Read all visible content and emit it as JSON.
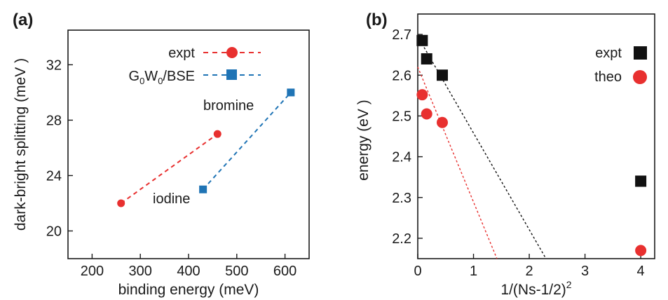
{
  "colors": {
    "red": "#e8302f",
    "blue": "#1f74b5",
    "black": "#111111"
  },
  "chart_data": [
    {
      "type": "scatter",
      "panel": "(a)",
      "xlabel": "binding energy (meV)",
      "ylabel": "dark-bright splitting (meV )",
      "xlim": [
        150,
        650
      ],
      "ylim": [
        18,
        34.5
      ],
      "xticks": [
        "200",
        "300",
        "400",
        "500",
        "600"
      ],
      "yticks": [
        "20",
        "24",
        "28",
        "32"
      ],
      "grid": false,
      "legend_position": "top-right",
      "series": [
        {
          "name": "expt",
          "name_sub": "",
          "marker": "circle",
          "color": "#e8302f",
          "line": "dashed",
          "x": [
            260,
            460
          ],
          "y": [
            22,
            27
          ]
        },
        {
          "name": "G",
          "name_sub": "0",
          "name_mid": "W",
          "name_sub2": "0",
          "name_tail": "/BSE",
          "marker": "square",
          "color": "#1f74b5",
          "line": "dashed",
          "x": [
            430,
            612
          ],
          "y": [
            23,
            30
          ]
        }
      ],
      "annotations": [
        {
          "text": "bromine"
        },
        {
          "text": "iodine"
        }
      ]
    },
    {
      "type": "scatter",
      "panel": "(b)",
      "xlabel": "1/(Ns-1/2)",
      "xlabel_sup": "2",
      "ylabel": "energy (eV )",
      "xlim": [
        0,
        4.25
      ],
      "ylim": [
        2.15,
        2.75
      ],
      "xticks": [
        "0",
        "1",
        "2",
        "3",
        "4"
      ],
      "yticks": [
        "2.2",
        "2.3",
        "2.4",
        "2.5",
        "2.6",
        "2.7"
      ],
      "grid": false,
      "legend_position": "top-right",
      "series": [
        {
          "name": "expt",
          "marker": "square",
          "color": "#111111",
          "x": [
            0.08,
            0.16,
            0.44,
            4.0
          ],
          "y": [
            2.685,
            2.64,
            2.6,
            2.34
          ],
          "fit_line": {
            "x": [
              0.0,
              2.3
            ],
            "y": [
              2.695,
              2.15
            ]
          }
        },
        {
          "name": "theo",
          "marker": "circle",
          "color": "#e8302f",
          "x": [
            0.08,
            0.16,
            0.44,
            4.0
          ],
          "y": [
            2.552,
            2.505,
            2.484,
            2.17
          ],
          "fit_line": {
            "x": [
              0.0,
              1.42
            ],
            "y": [
              2.62,
              2.15
            ]
          }
        }
      ]
    }
  ]
}
